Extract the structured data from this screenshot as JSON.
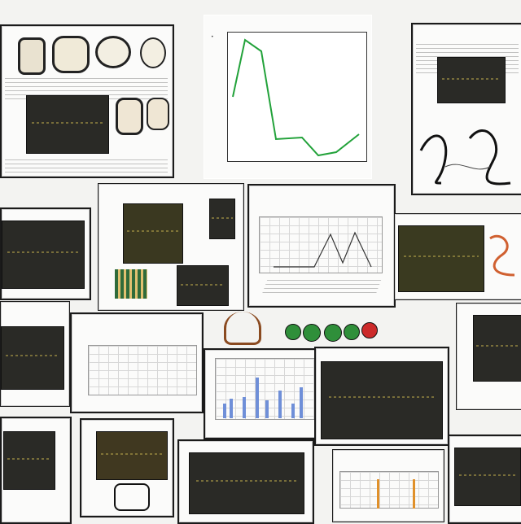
{
  "tiles": {
    "t01": {
      "title": ""
    },
    "t02": {
      "title": ""
    },
    "t03": {
      "title": ""
    },
    "t04": {
      "title": ""
    },
    "t05": {
      "title": ""
    },
    "t06": {
      "title": ""
    },
    "t07": {
      "title": ""
    },
    "t08": {
      "title": ""
    },
    "t09": {
      "title": ""
    },
    "t10": {
      "title": ""
    },
    "t11": {
      "title": ""
    },
    "t12": {
      "title": ""
    },
    "t13": {
      "title": ""
    },
    "t14": {
      "title": ""
    },
    "t15": {
      "title": ""
    },
    "t16": {
      "title": ""
    }
  },
  "colors": {
    "line_green": "#22a23a",
    "bar_blue": "#6f8fd8",
    "bar_orange": "#e0902a",
    "dark_panel": "#2a2a26",
    "specimen_yellow": "#b7a64a"
  },
  "icons": [
    "insect-specimen-icon",
    "green-dot-icon",
    "red-dot-icon"
  ]
}
